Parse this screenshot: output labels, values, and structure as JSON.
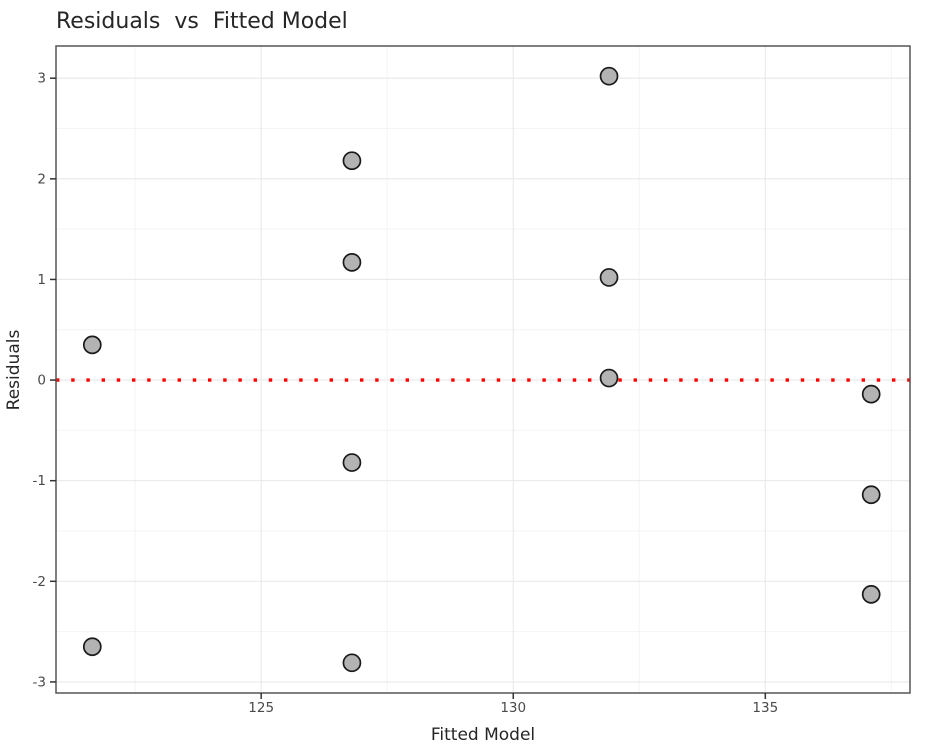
{
  "chart_data": {
    "type": "scatter",
    "title": "Residuals  vs  Fitted Model",
    "xlabel": "Fitted Model",
    "ylabel": "Residuals",
    "xlim": [
      120.93,
      137.87
    ],
    "ylim": [
      -3.11,
      3.32
    ],
    "x_ticks": [
      125,
      130,
      135
    ],
    "y_ticks": [
      -3,
      -2,
      -1,
      0,
      1,
      2,
      3
    ],
    "x_minor_ticks": [
      122.5,
      127.5,
      132.5,
      137.5
    ],
    "y_minor_ticks": [
      -2.5,
      -1.5,
      -0.5,
      0.5,
      1.5,
      2.5
    ],
    "grid": true,
    "legend": "none",
    "reference_line": {
      "y": 0,
      "color": "#ff0000",
      "style": "dotted"
    },
    "points": [
      {
        "x": 121.65,
        "y": 0.35
      },
      {
        "x": 121.65,
        "y": -2.65
      },
      {
        "x": 126.8,
        "y": 2.18
      },
      {
        "x": 126.8,
        "y": 1.17
      },
      {
        "x": 126.8,
        "y": -0.82
      },
      {
        "x": 126.8,
        "y": -2.81
      },
      {
        "x": 131.9,
        "y": 3.02
      },
      {
        "x": 131.9,
        "y": 1.02
      },
      {
        "x": 131.9,
        "y": 0.02
      },
      {
        "x": 137.1,
        "y": -0.14
      },
      {
        "x": 137.1,
        "y": -1.14
      },
      {
        "x": 137.1,
        "y": -2.13
      }
    ],
    "style": {
      "background": "#ffffff",
      "point_fill": "#b3b3b3",
      "point_stroke": "#1a1a1a",
      "point_radius": 8.5,
      "grid_major": "#e9e9e9",
      "grid_minor": "#f4f4f4",
      "panel_border": "#555555",
      "tick_color": "#333333",
      "tick_label_color": "#4a4a4a",
      "title_color": "#262626",
      "axis_title_color": "#262626"
    }
  }
}
